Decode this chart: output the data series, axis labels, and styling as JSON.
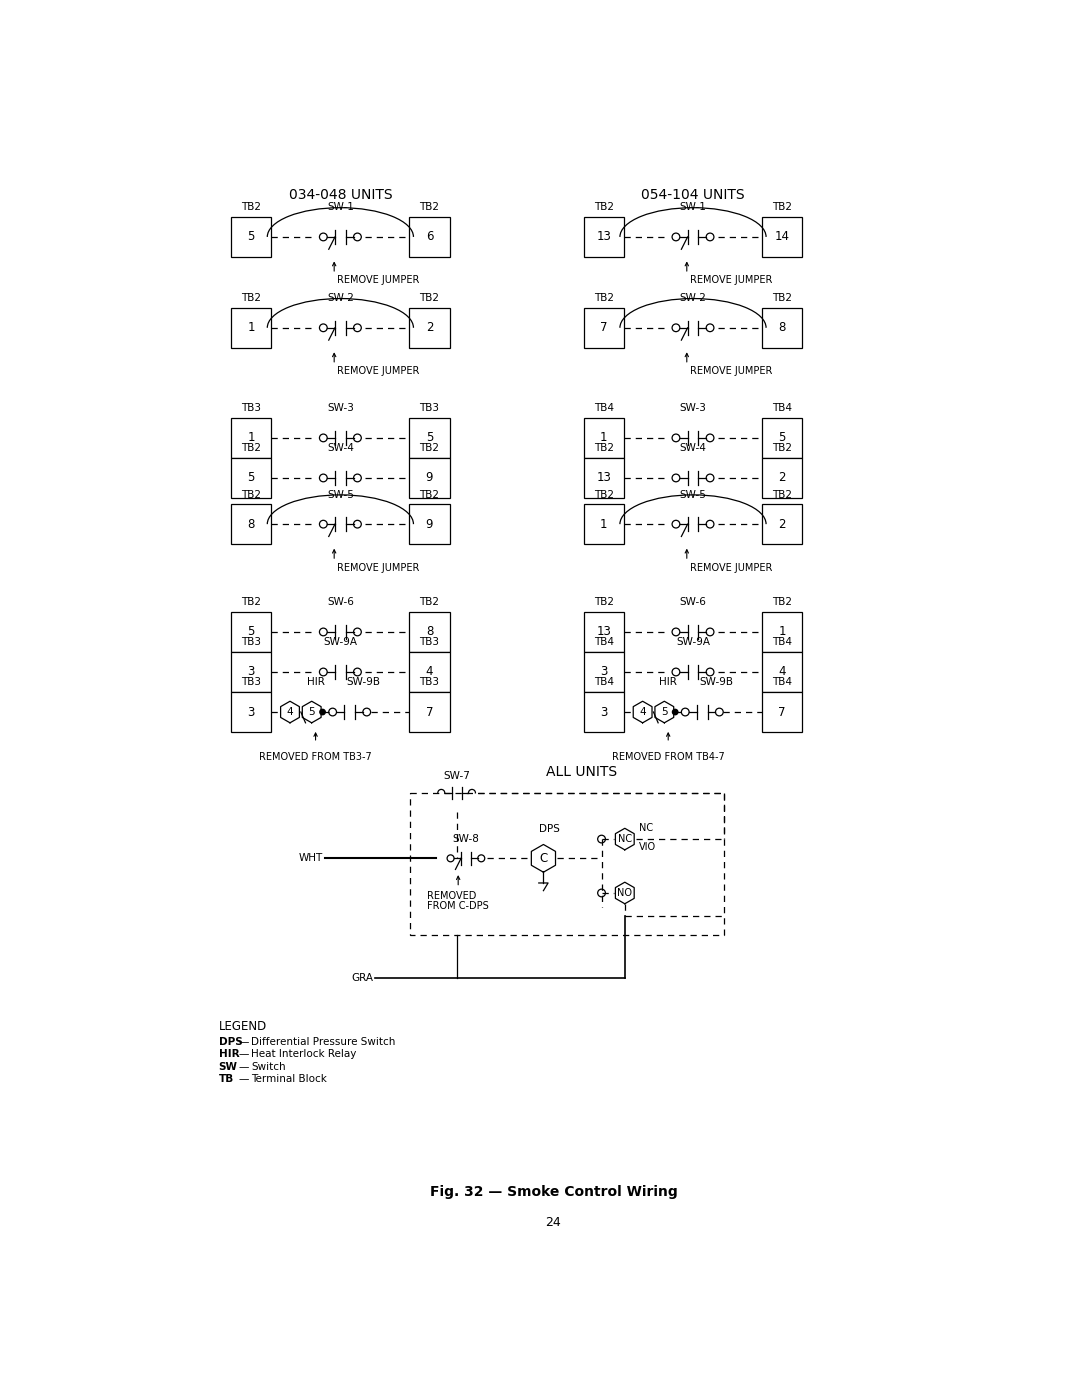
{
  "title": "Fig. 32 — Smoke Control Wiring",
  "left_title": "034-048 UNITS",
  "right_title": "054-104 UNITS",
  "all_units_title": "ALL UNITS",
  "bg_color": "#ffffff",
  "line_color": "#000000",
  "page_number": "24",
  "left_rows": [
    {
      "sw": "SW-1",
      "ltb": "TB2",
      "rtb": "TB2",
      "lnum": "5",
      "rnum": "6",
      "type": "SPDT",
      "jumper": true
    },
    {
      "sw": "SW-2",
      "ltb": "TB2",
      "rtb": "TB2",
      "lnum": "1",
      "rnum": "2",
      "type": "SPDT",
      "jumper": true
    },
    {
      "sw": "SW-3",
      "ltb": "TB3",
      "rtb": "TB3",
      "lnum": "1",
      "rnum": "5",
      "type": "NO",
      "jumper": false
    },
    {
      "sw": "SW-4",
      "ltb": "TB2",
      "rtb": "TB2",
      "lnum": "5",
      "rnum": "9",
      "type": "NO",
      "jumper": false
    },
    {
      "sw": "SW-5",
      "ltb": "TB2",
      "rtb": "TB2",
      "lnum": "8",
      "rnum": "9",
      "type": "SPDT",
      "jumper": true
    },
    {
      "sw": "SW-6",
      "ltb": "TB2",
      "rtb": "TB2",
      "lnum": "5",
      "rnum": "8",
      "type": "NO",
      "jumper": false
    },
    {
      "sw": "SW-9A",
      "ltb": "TB3",
      "rtb": "TB3",
      "lnum": "3",
      "rnum": "4",
      "type": "NO",
      "jumper": false
    }
  ],
  "right_rows": [
    {
      "sw": "SW-1",
      "ltb": "TB2",
      "rtb": "TB2",
      "lnum": "13",
      "rnum": "14",
      "type": "SPDT",
      "jumper": true
    },
    {
      "sw": "SW-2",
      "ltb": "TB2",
      "rtb": "TB2",
      "lnum": "7",
      "rnum": "8",
      "type": "SPDT",
      "jumper": true
    },
    {
      "sw": "SW-3",
      "ltb": "TB4",
      "rtb": "TB4",
      "lnum": "1",
      "rnum": "5",
      "type": "NO",
      "jumper": false
    },
    {
      "sw": "SW-4",
      "ltb": "TB2",
      "rtb": "TB2",
      "lnum": "13",
      "rnum": "2",
      "type": "NO",
      "jumper": false
    },
    {
      "sw": "SW-5",
      "ltb": "TB2",
      "rtb": "TB2",
      "lnum": "1",
      "rnum": "2",
      "type": "SPDT",
      "jumper": true
    },
    {
      "sw": "SW-6",
      "ltb": "TB2",
      "rtb": "TB2",
      "lnum": "13",
      "rnum": "1",
      "type": "NO",
      "jumper": false
    },
    {
      "sw": "SW-9A",
      "ltb": "TB4",
      "rtb": "TB4",
      "lnum": "3",
      "rnum": "4",
      "type": "NO",
      "jumper": false
    }
  ],
  "legend_items": [
    [
      "DPS",
      "Differential Pressure Switch"
    ],
    [
      "HIR",
      "Heat Interlock Relay"
    ],
    [
      "SW",
      "Switch"
    ],
    [
      "TB",
      "Terminal Block"
    ]
  ]
}
